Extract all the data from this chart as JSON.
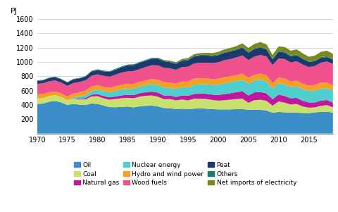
{
  "years": [
    1970,
    1971,
    1972,
    1973,
    1974,
    1975,
    1976,
    1977,
    1978,
    1979,
    1980,
    1981,
    1982,
    1983,
    1984,
    1985,
    1986,
    1987,
    1988,
    1989,
    1990,
    1991,
    1992,
    1993,
    1994,
    1995,
    1996,
    1997,
    1998,
    1999,
    2000,
    2001,
    2002,
    2003,
    2004,
    2005,
    2006,
    2007,
    2008,
    2009,
    2010,
    2011,
    2012,
    2013,
    2014,
    2015,
    2016,
    2017,
    2018,
    2019
  ],
  "oil": [
    415,
    420,
    445,
    455,
    435,
    400,
    415,
    405,
    400,
    420,
    415,
    390,
    370,
    368,
    372,
    378,
    365,
    382,
    388,
    392,
    380,
    358,
    354,
    342,
    348,
    342,
    348,
    353,
    348,
    342,
    338,
    338,
    338,
    342,
    342,
    332,
    332,
    332,
    322,
    292,
    302,
    297,
    292,
    292,
    287,
    287,
    297,
    302,
    307,
    292
  ],
  "coal": [
    75,
    76,
    80,
    82,
    76,
    68,
    72,
    72,
    78,
    98,
    108,
    102,
    102,
    115,
    122,
    122,
    128,
    135,
    140,
    140,
    135,
    122,
    128,
    122,
    128,
    122,
    140,
    135,
    135,
    128,
    122,
    128,
    135,
    140,
    147,
    98,
    135,
    140,
    135,
    98,
    147,
    135,
    115,
    122,
    92,
    75,
    68,
    86,
    92,
    75
  ],
  "natural_gas": [
    0,
    0,
    0,
    0,
    0,
    0,
    6,
    12,
    18,
    25,
    30,
    34,
    34,
    36,
    40,
    42,
    46,
    48,
    51,
    54,
    58,
    51,
    52,
    48,
    58,
    63,
    67,
    70,
    73,
    75,
    79,
    87,
    91,
    97,
    103,
    103,
    109,
    109,
    105,
    91,
    97,
    94,
    87,
    85,
    79,
    73,
    70,
    73,
    70,
    67
  ],
  "nuclear": [
    0,
    0,
    0,
    0,
    0,
    0,
    15,
    30,
    42,
    52,
    63,
    68,
    72,
    78,
    83,
    83,
    90,
    93,
    98,
    105,
    108,
    113,
    108,
    113,
    117,
    120,
    128,
    132,
    135,
    138,
    143,
    150,
    153,
    158,
    162,
    165,
    168,
    173,
    168,
    150,
    158,
    162,
    158,
    162,
    165,
    162,
    165,
    168,
    165,
    162
  ],
  "hydro_wind": [
    60,
    58,
    54,
    50,
    48,
    50,
    54,
    58,
    60,
    63,
    60,
    58,
    60,
    63,
    66,
    70,
    66,
    63,
    66,
    70,
    72,
    75,
    70,
    72,
    78,
    82,
    84,
    86,
    82,
    78,
    84,
    86,
    82,
    78,
    84,
    82,
    78,
    84,
    82,
    72,
    78,
    82,
    75,
    78,
    75,
    72,
    78,
    84,
    82,
    75
  ],
  "wood_fuels": [
    145,
    148,
    152,
    155,
    152,
    148,
    145,
    143,
    145,
    148,
    152,
    155,
    157,
    163,
    169,
    175,
    179,
    181,
    188,
    194,
    200,
    200,
    200,
    194,
    200,
    206,
    212,
    215,
    218,
    224,
    230,
    236,
    242,
    248,
    254,
    248,
    254,
    260,
    266,
    254,
    266,
    272,
    266,
    272,
    266,
    260,
    266,
    278,
    290,
    303
  ],
  "peat": [
    42,
    42,
    46,
    48,
    46,
    48,
    51,
    51,
    54,
    60,
    60,
    63,
    66,
    70,
    75,
    82,
    82,
    87,
    87,
    91,
    94,
    91,
    85,
    82,
    87,
    91,
    97,
    97,
    99,
    97,
    99,
    103,
    105,
    106,
    109,
    103,
    106,
    103,
    97,
    82,
    97,
    91,
    87,
    82,
    79,
    73,
    67,
    67,
    63,
    58
  ],
  "others": [
    6,
    6,
    6,
    6,
    6,
    6,
    6,
    6,
    6,
    10,
    10,
    10,
    10,
    12,
    12,
    12,
    12,
    12,
    12,
    12,
    12,
    12,
    12,
    12,
    12,
    12,
    12,
    12,
    12,
    12,
    12,
    12,
    12,
    12,
    12,
    12,
    12,
    12,
    12,
    12,
    12,
    12,
    12,
    12,
    12,
    12,
    12,
    12,
    12,
    12
  ],
  "net_imports": [
    0,
    0,
    0,
    0,
    0,
    0,
    0,
    0,
    0,
    0,
    0,
    0,
    0,
    0,
    0,
    0,
    0,
    0,
    0,
    0,
    0,
    6,
    10,
    12,
    15,
    18,
    22,
    24,
    27,
    30,
    34,
    36,
    39,
    42,
    48,
    54,
    60,
    66,
    60,
    48,
    60,
    66,
    66,
    72,
    66,
    60,
    66,
    72,
    78,
    72
  ],
  "colors": {
    "oil": "#3b8ec8",
    "coal": "#c8e06c",
    "natural_gas": "#c0179f",
    "nuclear": "#4ecece",
    "hydro_wind": "#f5a020",
    "wood_fuels": "#f0508c",
    "peat": "#1c3a6e",
    "others": "#1a7a6e",
    "net_imports": "#7a8a1a"
  },
  "legend_labels": {
    "oil": "Oil",
    "coal": "Coal",
    "natural_gas": "Natural gas",
    "nuclear": "Nuclear energy",
    "hydro_wind": "Hydro and wind power",
    "wood_fuels": "Wood fuels",
    "peat": "Peat",
    "others": "Others",
    "net_imports": "Net imports of electricity"
  },
  "ylabel": "PJ",
  "ylim": [
    0,
    1600
  ],
  "yticks": [
    0,
    200,
    400,
    600,
    800,
    1000,
    1200,
    1400,
    1600
  ],
  "xticks": [
    1970,
    1975,
    1980,
    1985,
    1990,
    1995,
    2000,
    2005,
    2010,
    2015
  ],
  "grid_color": "#c8c8c8",
  "background_color": "#ffffff",
  "stack_order": [
    "oil",
    "coal",
    "natural_gas",
    "nuclear",
    "hydro_wind",
    "wood_fuels",
    "peat",
    "others",
    "net_imports"
  ],
  "legend_order": [
    [
      "oil",
      "coal",
      "natural_gas"
    ],
    [
      "nuclear",
      "hydro_wind",
      "wood_fuels"
    ],
    [
      "peat",
      "others",
      "net_imports"
    ]
  ]
}
